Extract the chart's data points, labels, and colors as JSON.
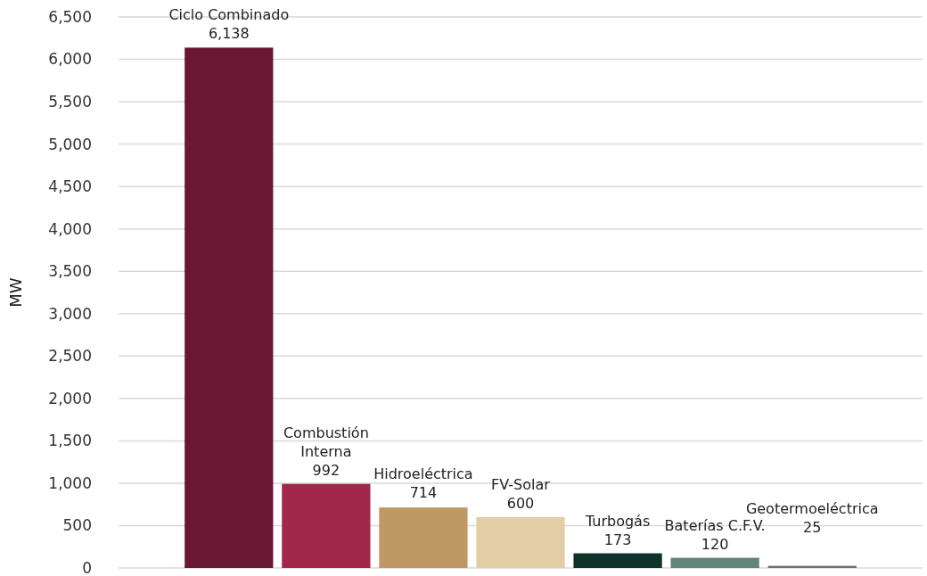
{
  "chart_data": {
    "type": "bar",
    "ylabel": "MW",
    "categories": [
      "Ciclo Combinado",
      "Combustión Interna",
      "Hidroeléctrica",
      "FV-Solar",
      "Turbogás",
      "Baterías C.F.V.",
      "Geotermoeléctrica"
    ],
    "values": [
      6138,
      992,
      714,
      600,
      173,
      120,
      25
    ],
    "value_labels": [
      "6,138",
      "992",
      "714",
      "600",
      "173",
      "120",
      "25"
    ],
    "colors": [
      "#6a1733",
      "#a2284b",
      "#be9964",
      "#e3cda7",
      "#0c3229",
      "#5f8676",
      "#6c706c"
    ],
    "ylim": [
      0,
      6500
    ],
    "yticks": [
      0,
      500,
      {
        "value": 1000,
        "label": "1,000"
      },
      {
        "value": 1500,
        "label": "1,500"
      },
      {
        "value": 2000,
        "label": "2,000"
      },
      {
        "value": 2500,
        "label": "2,500"
      },
      {
        "value": 3000,
        "label": "3,000"
      },
      {
        "value": 3500,
        "label": "3,500"
      },
      {
        "value": 4000,
        "label": "4,000"
      },
      {
        "value": 4500,
        "label": "4,500"
      },
      {
        "value": 5000,
        "label": "5,000"
      },
      {
        "value": 5500,
        "label": "5,500"
      },
      {
        "value": 6000,
        "label": "6,000"
      },
      {
        "value": 6500,
        "label": "6,500"
      }
    ],
    "grid": "y",
    "tick_labels": "y"
  }
}
